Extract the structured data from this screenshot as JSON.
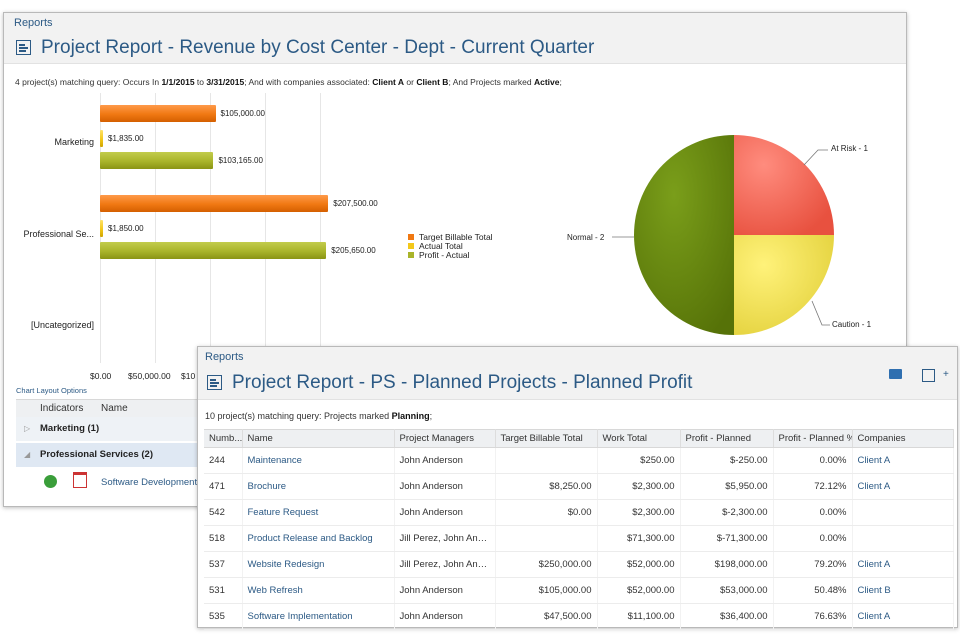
{
  "report_a": {
    "breadcrumb": "Reports",
    "title": "Project Report - Revenue by Cost Center - Dept - Current Quarter",
    "query": {
      "count": "4 project(s) matching query: Occurs In ",
      "date_from": "1/1/2015",
      "to": " to ",
      "date_to": "3/31/2015",
      "mid1": "; And with companies associated: ",
      "company_a": "Client A",
      "or": " or ",
      "company_b": "Client B",
      "mid2": "; And Projects marked ",
      "status": "Active",
      "end": ";"
    },
    "chart_layout_options": "Chart Layout Options",
    "grid": {
      "columns": [
        "Indicators",
        "Name"
      ],
      "groups": [
        {
          "label": "Marketing (1)"
        },
        {
          "label": "Professional Services (2)"
        }
      ],
      "row": {
        "name": "Software Development"
      }
    }
  },
  "chart_data": [
    {
      "type": "bar",
      "orientation": "horizontal",
      "categories": [
        "Marketing",
        "Professional Se...",
        "[Uncategorized]"
      ],
      "series": [
        {
          "name": "Target Billable Total",
          "color": "#f07812",
          "values": [
            105000,
            207500,
            null
          ],
          "labels": [
            "$105,000.00",
            "$207,500.00",
            ""
          ]
        },
        {
          "name": "Actual Total",
          "color": "#f3c81a",
          "values": [
            1835,
            1850,
            null
          ],
          "labels": [
            "$1,835.00",
            "$1,850.00",
            ""
          ]
        },
        {
          "name": "Profit - Actual",
          "color": "#a9b42a",
          "values": [
            103165,
            205650,
            null
          ],
          "labels": [
            "$103,165.00",
            "$205,650.00",
            ""
          ]
        }
      ],
      "x_ticks": [
        "$0.00",
        "$50,000.00",
        "$10"
      ],
      "xlim": [
        0,
        250000
      ]
    },
    {
      "type": "pie",
      "slices": [
        {
          "label": "At Risk - 1",
          "value": 1,
          "color": "#f2685a"
        },
        {
          "label": "Caution - 1",
          "value": 1,
          "color": "#ede05a"
        },
        {
          "label": "Normal - 2",
          "value": 2,
          "color": "#6b8a12"
        }
      ]
    }
  ],
  "report_b": {
    "breadcrumb": "Reports",
    "title": "Project Report - PS - Planned Projects - Planned Profit",
    "query_prefix": "10 project(s) matching query: Projects marked ",
    "query_status": "Planning",
    "query_end": ";",
    "columns": [
      "Numb...",
      "Name",
      "Project Managers",
      "Target Billable Total",
      "Work Total",
      "Profit - Planned",
      "Profit - Planned %",
      "Companies"
    ],
    "rows": [
      [
        "244",
        "Maintenance",
        "John Anderson",
        "",
        "$250.00",
        "$-250.00",
        "0.00%",
        "Client A"
      ],
      [
        "471",
        "Brochure",
        "John Anderson",
        "$8,250.00",
        "$2,300.00",
        "$5,950.00",
        "72.12%",
        "Client A"
      ],
      [
        "542",
        "Feature Request",
        "John Anderson",
        "$0.00",
        "$2,300.00",
        "$-2,300.00",
        "0.00%",
        ""
      ],
      [
        "518",
        "Product Release and Backlog",
        "Jill Perez, John Ander...",
        "",
        "$71,300.00",
        "$-71,300.00",
        "0.00%",
        ""
      ],
      [
        "537",
        "Website Redesign",
        "Jill Perez, John Ander...",
        "$250,000.00",
        "$52,000.00",
        "$198,000.00",
        "79.20%",
        "Client A"
      ],
      [
        "531",
        "Web Refresh",
        "John Anderson",
        "$105,000.00",
        "$52,000.00",
        "$53,000.00",
        "50.48%",
        "Client B"
      ],
      [
        "535",
        "Software Implementation",
        "John Anderson",
        "$47,500.00",
        "$11,100.00",
        "$36,400.00",
        "76.63%",
        "Client A"
      ]
    ]
  }
}
